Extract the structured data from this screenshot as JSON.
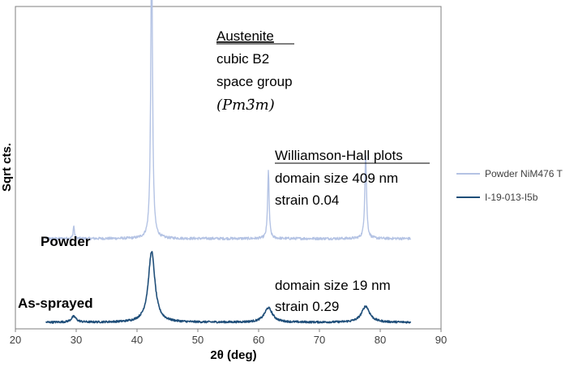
{
  "chart_data": {
    "type": "line",
    "xlabel": "2θ (deg)",
    "ylabel": "Sqrt cts.",
    "xlim": [
      20,
      90
    ],
    "xticks": [
      "20",
      "30",
      "40",
      "50",
      "60",
      "70",
      "80",
      "90"
    ],
    "y_ticks_shown": false,
    "grid": false,
    "legend_position": "right",
    "series": [
      {
        "name": "Powder NiM476 T",
        "color": "#b4c3e4",
        "label": "Powder",
        "baseline": 0.28,
        "noise": 0.004,
        "x_range": [
          25,
          85
        ],
        "peaks": [
          {
            "x": 29.6,
            "height": 0.04,
            "width": 0.12
          },
          {
            "x": 42.4,
            "height": 0.93,
            "width": 0.17
          },
          {
            "x": 61.6,
            "height": 0.21,
            "width": 0.15
          },
          {
            "x": 77.6,
            "height": 0.26,
            "width": 0.17
          }
        ]
      },
      {
        "name": "I-19-013-I5b",
        "color": "#1f4e79",
        "label": "As-sprayed",
        "baseline": 0.02,
        "noise": 0.003,
        "x_range": [
          25,
          85
        ],
        "peaks": [
          {
            "x": 29.6,
            "height": 0.018,
            "width": 0.5
          },
          {
            "x": 42.4,
            "height": 0.22,
            "width": 0.65
          },
          {
            "x": 61.6,
            "height": 0.045,
            "width": 0.8
          },
          {
            "x": 77.6,
            "height": 0.05,
            "width": 0.8
          }
        ]
      }
    ],
    "annotations": {
      "phase_title": "Austenite",
      "phase_line1": "cubic B2",
      "phase_line2": "space group",
      "phase_line3": "(Pm3̄m)",
      "wh_title": "Williamson-Hall plots",
      "powder_domain": "domain size 409 nm",
      "powder_strain": "strain 0.04",
      "sprayed_domain": "domain size 19 nm",
      "sprayed_strain": "strain 0.29"
    }
  }
}
